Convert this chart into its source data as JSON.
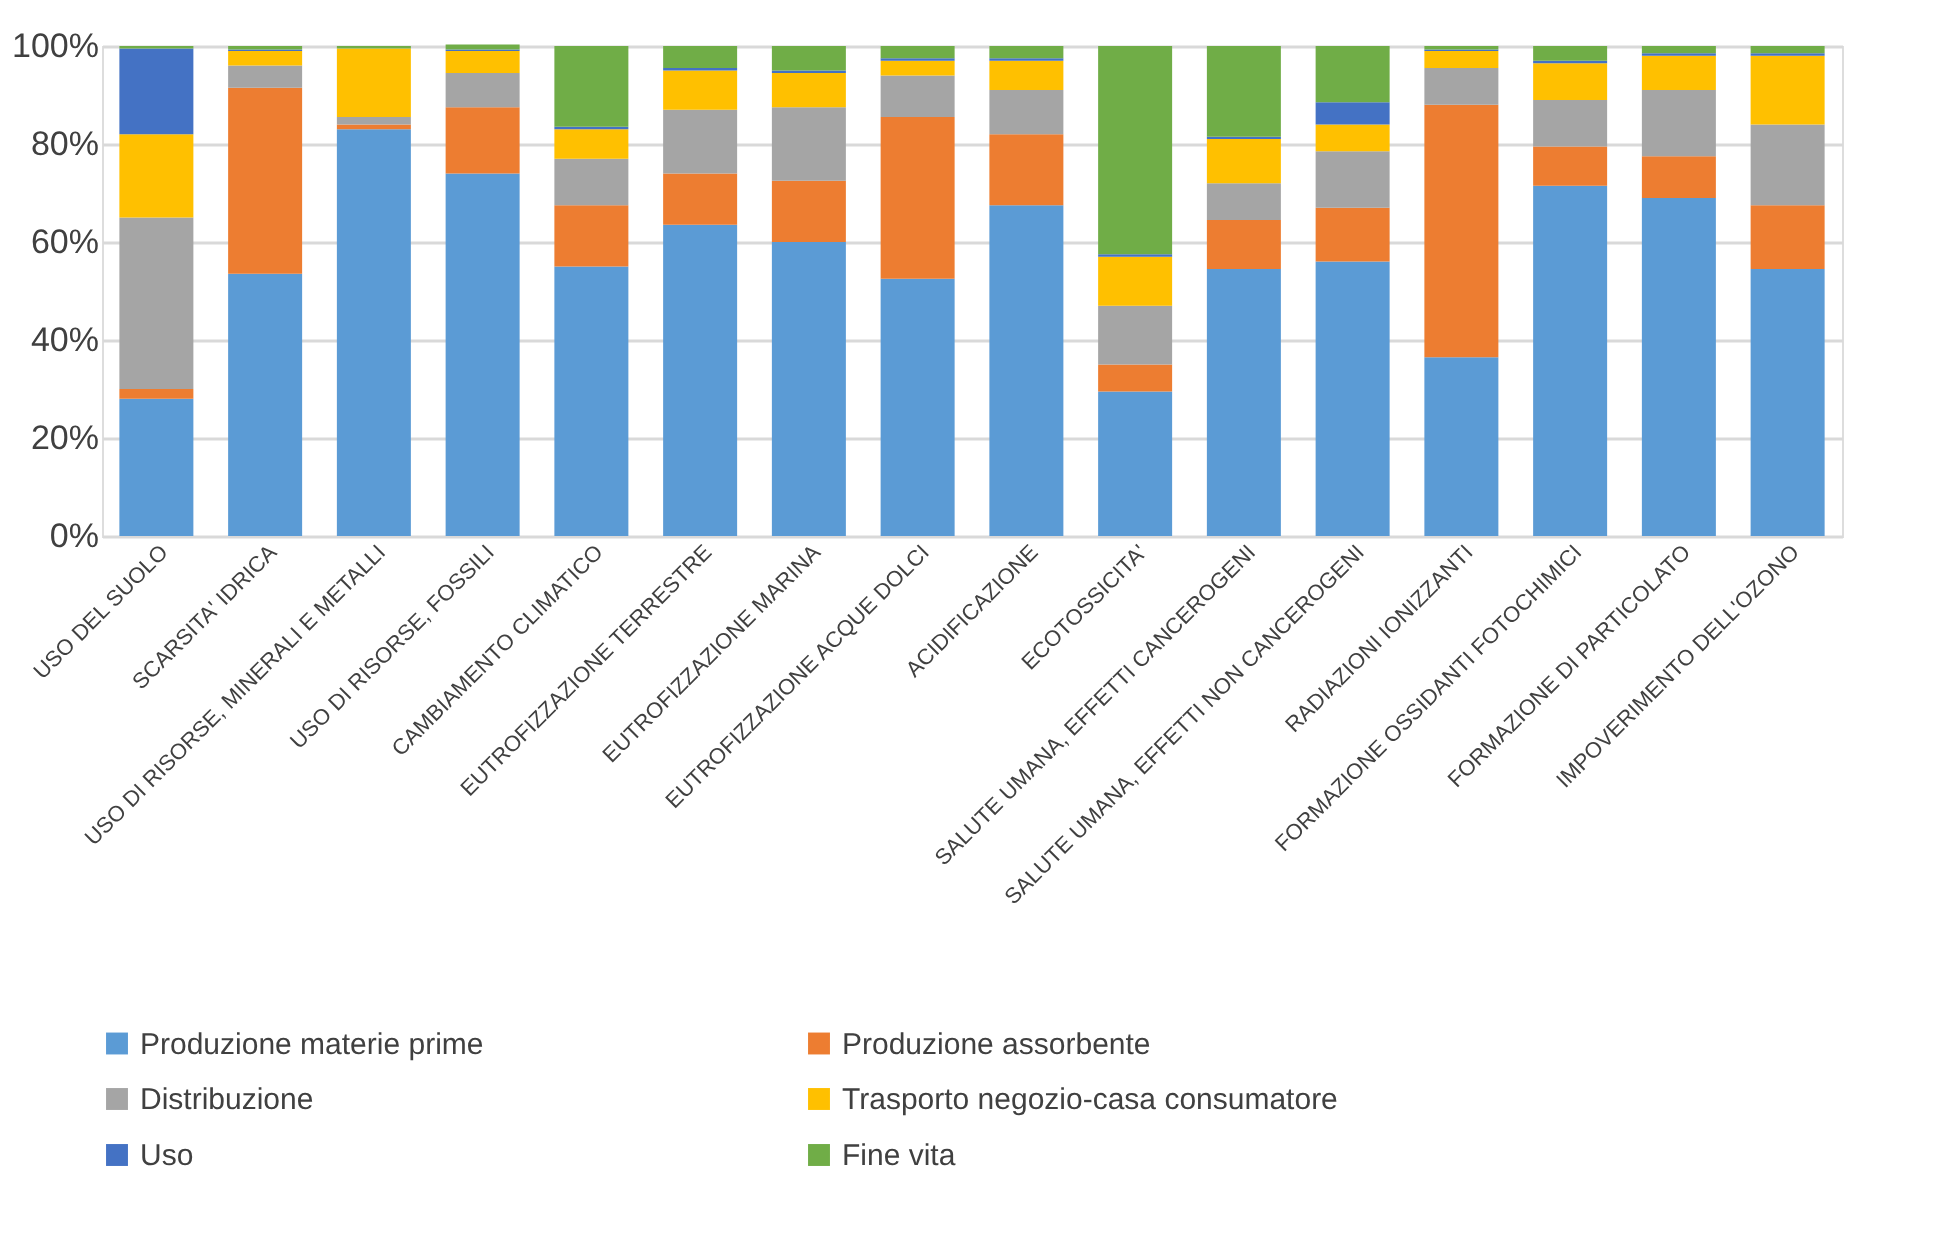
{
  "chart_data": {
    "type": "bar",
    "stacked": true,
    "categories": [
      "USO DEL SUOLO",
      "SCARSITA' IDRICA",
      "USO DI RISORSE, MINERALI E METALLI",
      "USO DI RISORSE, FOSSILI",
      "CAMBIAMENTO CLIMATICO",
      "EUTROFIZZAZIONE TERRESTRE",
      "EUTROFIZZAZIONE MARINA",
      "EUTROFIZZAZIONE ACQUE DOLCI",
      "ACIDIFICAZIONE",
      "ECOTOSSICITA'",
      "SALUTE UMANA, EFFETTI CANCEROGENI",
      "SALUTE UMANA, EFFETTI NON CANCEROGENI",
      "RADIAZIONI IONIZZANTI",
      "FORMAZIONE OSSIDANTI FOTOCHIMICI",
      "FORMAZIONE DI PARTICOLATO",
      "IMPOVERIMENTO DELL'OZONO"
    ],
    "series": [
      {
        "name": "Produzione materie prime",
        "color": "#5b9bd5",
        "values": [
          28,
          53.5,
          83,
          74,
          55,
          63.5,
          60,
          52.5,
          67.5,
          29.5,
          54.5,
          56,
          36.5,
          71.5,
          69,
          54.5
        ]
      },
      {
        "name": "Produzione assorbente",
        "color": "#ed7d31",
        "values": [
          2,
          38,
          1,
          13.5,
          12.5,
          10.5,
          12.5,
          33,
          14.5,
          5.5,
          10,
          11,
          51.5,
          8,
          8.5,
          13
        ]
      },
      {
        "name": "Distribuzione",
        "color": "#a5a5a5",
        "values": [
          35,
          4.5,
          1.5,
          7,
          9.5,
          13,
          15,
          8.5,
          9,
          12,
          7.5,
          11.5,
          7.5,
          9.5,
          13.5,
          16.5
        ]
      },
      {
        "name": "Trasporto negozio-casa consumatore",
        "color": "#ffc000",
        "values": [
          17,
          3,
          14,
          4.5,
          6,
          8,
          7,
          3,
          6,
          10,
          9,
          5.5,
          3.5,
          7.5,
          7,
          14
        ]
      },
      {
        "name": "Uso",
        "color": "#4472c4",
        "values": [
          17.5,
          0.3,
          null,
          0.3,
          0.5,
          0.5,
          0.5,
          0.5,
          0.5,
          0.5,
          0.5,
          4.5,
          0.3,
          0.5,
          0.5,
          0.5
        ]
      },
      {
        "name": "Fine vita",
        "color": "#70ad47",
        "values": [
          0.5,
          0.7,
          0.5,
          1,
          16.5,
          4.5,
          5,
          2.5,
          2.5,
          42.5,
          18.5,
          11.5,
          0.7,
          3,
          1.5,
          1.5
        ]
      }
    ],
    "ylim": [
      0,
      100
    ],
    "yticks": [
      {
        "value": 0,
        "label": "0%"
      },
      {
        "value": 20,
        "label": "20%"
      },
      {
        "value": 40,
        "label": "40%"
      },
      {
        "value": 60,
        "label": "60%"
      },
      {
        "value": 80,
        "label": "80%"
      },
      {
        "value": 100,
        "label": "100%"
      }
    ],
    "grid": "y",
    "legend": "bottom"
  }
}
